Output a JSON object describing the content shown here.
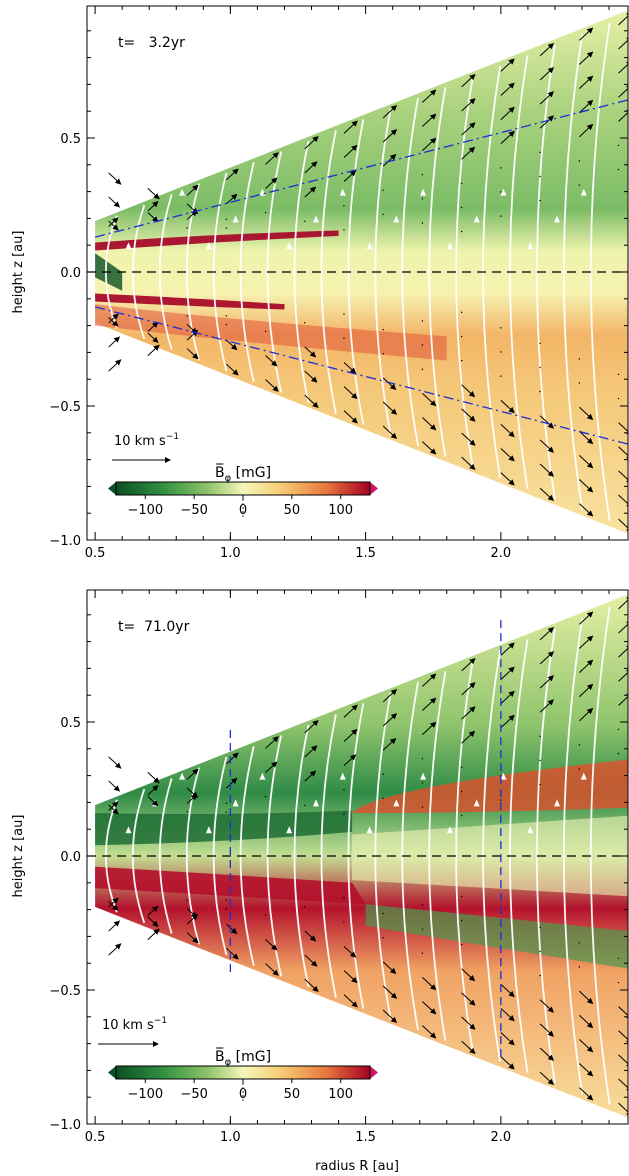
{
  "chart_data": [
    {
      "type": "heatmap",
      "panel": "top",
      "time_label": "t=   3.2yr",
      "xlabel": "",
      "ylabel": "height  z [au]",
      "xlim": [
        0.47,
        2.47
      ],
      "ylim": [
        -1.0,
        0.95
      ],
      "xticks": [
        "0.5",
        "1.0",
        "1.5",
        "2.0"
      ],
      "yticks": [
        "0.5",
        "0.0",
        "−0.5",
        "−1.0"
      ],
      "colorbar": {
        "label": "B̅",
        "label_sub": "φ",
        "label_unit": "[mG]",
        "range": [
          -130,
          130
        ],
        "ticks": [
          "−100",
          "−50",
          "0",
          "50",
          "100"
        ],
        "colors": [
          "#0b4f23",
          "#2f8f3f",
          "#8cc36a",
          "#f4f7b8",
          "#f6c870",
          "#e8743a",
          "#a50026"
        ]
      },
      "velocity_scale_label": "10 km s",
      "velocity_scale_exp": "−1",
      "disk_wedge_slope": 0.38,
      "disk_outer_edge": 2.47,
      "description_lines": [
        "z=0 dashed line",
        "dash-dot lines |z| = 0.26 R"
      ],
      "dashdot_slope": 0.26,
      "vertical_dashed_x": []
    },
    {
      "type": "heatmap",
      "panel": "bottom",
      "time_label": "t=  71.0yr",
      "xlabel": "radius  R [au]",
      "ylabel": "height  z [au]",
      "xlim": [
        0.47,
        2.47
      ],
      "ylim": [
        -1.0,
        0.95
      ],
      "xticks": [
        "0.5",
        "1.0",
        "1.5",
        "2.0"
      ],
      "yticks": [
        "0.5",
        "0.0",
        "−0.5",
        "−1.0"
      ],
      "colorbar": {
        "label": "B̅",
        "label_sub": "φ",
        "label_unit": "[mG]",
        "range": [
          -130,
          130
        ],
        "ticks": [
          "−100",
          "−50",
          "0",
          "50",
          "100"
        ],
        "colors": [
          "#0b4f23",
          "#2f8f3f",
          "#8cc36a",
          "#f4f7b8",
          "#f6c870",
          "#e8743a",
          "#a50026"
        ]
      },
      "velocity_scale_label": "10 km s",
      "velocity_scale_exp": "−1",
      "disk_wedge_slope": 0.38,
      "disk_outer_edge": 2.47,
      "vertical_dashed_x": [
        1.0,
        2.0
      ],
      "field_reversal_R": 1.45
    }
  ]
}
